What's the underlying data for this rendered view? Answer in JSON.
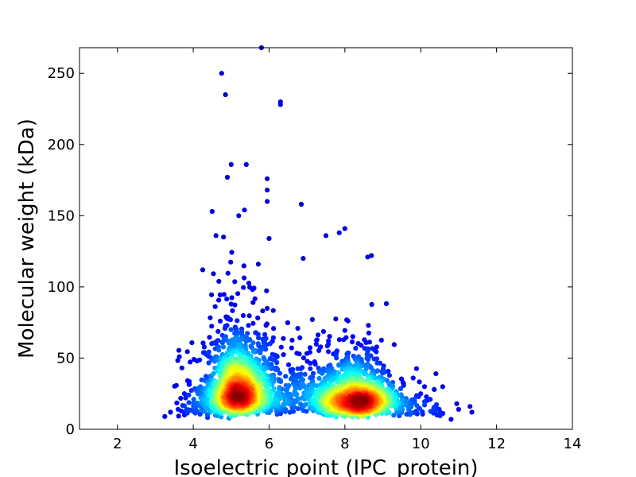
{
  "chart_data": {
    "type": "scatter",
    "title": "",
    "xlabel": "Isoelectric point (IPC_protein)",
    "ylabel": "Molecular weight (kDa)",
    "xlim": [
      1,
      14
    ],
    "ylim": [
      0,
      268
    ],
    "xticks": [
      2,
      4,
      6,
      8,
      10,
      12,
      14
    ],
    "yticks": [
      0,
      50,
      100,
      150,
      200,
      250
    ],
    "grid": false,
    "colormap": "jet (point color encodes local point density: blue = sparse, red = dense)",
    "density_peaks": [
      {
        "x": 5.2,
        "y": 28
      },
      {
        "x": 8.3,
        "y": 22
      }
    ],
    "outliers": [
      {
        "x": 4.75,
        "y": 250
      },
      {
        "x": 4.85,
        "y": 235
      },
      {
        "x": 5.8,
        "y": 268
      },
      {
        "x": 6.3,
        "y": 230
      },
      {
        "x": 6.3,
        "y": 228
      },
      {
        "x": 5.0,
        "y": 186
      },
      {
        "x": 5.4,
        "y": 186
      },
      {
        "x": 4.9,
        "y": 177
      },
      {
        "x": 5.95,
        "y": 176
      },
      {
        "x": 5.95,
        "y": 168
      },
      {
        "x": 5.95,
        "y": 160
      },
      {
        "x": 6.85,
        "y": 158
      },
      {
        "x": 4.5,
        "y": 153
      },
      {
        "x": 5.35,
        "y": 154
      },
      {
        "x": 5.2,
        "y": 150
      },
      {
        "x": 8.0,
        "y": 141
      },
      {
        "x": 7.85,
        "y": 138
      },
      {
        "x": 4.6,
        "y": 136
      },
      {
        "x": 4.8,
        "y": 135
      },
      {
        "x": 6.0,
        "y": 134
      },
      {
        "x": 7.5,
        "y": 136
      },
      {
        "x": 6.9,
        "y": 120
      },
      {
        "x": 8.7,
        "y": 122
      },
      {
        "x": 8.6,
        "y": 121
      },
      {
        "x": 10.4,
        "y": 39
      },
      {
        "x": 10.95,
        "y": 18
      },
      {
        "x": 11.3,
        "y": 16
      },
      {
        "x": 11.35,
        "y": 12
      },
      {
        "x": 11.0,
        "y": 14
      },
      {
        "x": 10.8,
        "y": 7
      },
      {
        "x": 10.5,
        "y": 10
      },
      {
        "x": 10.1,
        "y": 30
      },
      {
        "x": 10.0,
        "y": 25
      },
      {
        "x": 9.8,
        "y": 36
      },
      {
        "x": 3.25,
        "y": 9
      },
      {
        "x": 3.4,
        "y": 12
      },
      {
        "x": 3.6,
        "y": 14
      },
      {
        "x": 3.8,
        "y": 22
      },
      {
        "x": 4.1,
        "y": 48
      },
      {
        "x": 4.25,
        "y": 112
      }
    ]
  }
}
